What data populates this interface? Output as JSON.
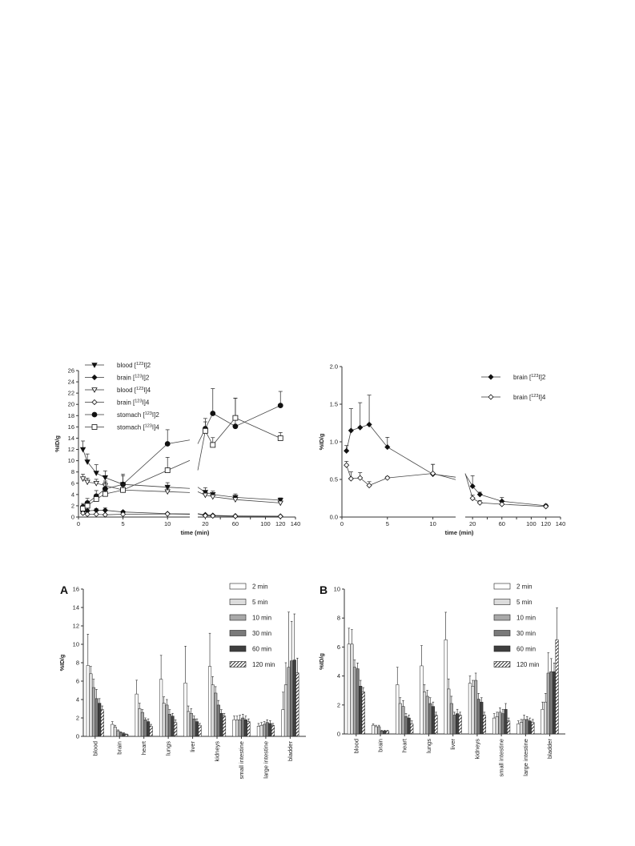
{
  "chart_data": [
    {
      "type": "line",
      "ylabel": "%ID/g",
      "xlabel": "time (min)",
      "xticks_left": [
        "0",
        "5",
        "10"
      ],
      "xticks_right": [
        "20",
        "40",
        "60",
        "80",
        "100",
        "120",
        "140"
      ],
      "xticks_right_labels": [
        "20",
        "",
        "60",
        "",
        "100",
        "120",
        "140"
      ],
      "yticks": [
        "0",
        "2",
        "4",
        "6",
        "8",
        "10",
        "12",
        "14",
        "16",
        "18",
        "20",
        "22",
        "24",
        "26"
      ],
      "ylim": [
        0,
        26
      ],
      "legend_position": "top-left",
      "series": [
        {
          "name": "blood [123I]2",
          "marker": "triangle-down-filled",
          "x": [
            0.5,
            1,
            2,
            3,
            5,
            10,
            20,
            30,
            60,
            120
          ],
          "y": [
            12.0,
            9.8,
            7.8,
            7.0,
            5.8,
            5.3,
            4.4,
            4.0,
            3.5,
            3.0
          ],
          "err": [
            1.5,
            1.4,
            1.5,
            1.2,
            1.8,
            0.8,
            0.8,
            0.6,
            0.6,
            0.4
          ]
        },
        {
          "name": "brain [123I]2",
          "marker": "diamond-filled",
          "x": [
            0.5,
            1,
            2,
            3,
            5,
            10,
            20,
            30,
            60,
            120
          ],
          "y": [
            1.0,
            1.1,
            1.2,
            1.2,
            0.9,
            0.6,
            0.4,
            0.3,
            0.2,
            0.15
          ],
          "err": [
            0.2,
            0.3,
            0.3,
            0.4,
            0.2,
            0.1,
            0.1,
            0.1,
            0.05,
            0.05
          ]
        },
        {
          "name": "blood [123I]4",
          "marker": "triangle-down-open",
          "x": [
            0.5,
            1,
            2,
            3,
            5,
            10,
            20,
            30,
            60,
            120
          ],
          "y": [
            6.8,
            6.2,
            6.0,
            5.6,
            4.8,
            4.5,
            3.9,
            3.6,
            3.1,
            2.5
          ],
          "err": [
            0.8,
            0.7,
            0.7,
            0.8,
            0.7,
            0.6,
            0.5,
            0.5,
            0.4,
            0.3
          ]
        },
        {
          "name": "brain [123I]4",
          "marker": "diamond-open",
          "x": [
            0.5,
            1,
            2,
            3,
            5,
            10,
            20,
            30,
            60,
            120
          ],
          "y": [
            0.7,
            0.5,
            0.5,
            0.4,
            0.5,
            0.55,
            0.25,
            0.2,
            0.15,
            0.12
          ],
          "err": [
            0.1,
            0.1,
            0.1,
            0.1,
            0.05,
            0.1,
            0.05,
            0.05,
            0.03,
            0.03
          ]
        },
        {
          "name": "stomach [123I]2",
          "marker": "circle-filled",
          "x": [
            0.5,
            1,
            2,
            3,
            5,
            10,
            20,
            30,
            60,
            120
          ],
          "y": [
            1.8,
            2.5,
            3.7,
            5.0,
            5.8,
            13.0,
            15.7,
            18.4,
            16.1,
            19.8
          ],
          "err": [
            0.6,
            0.8,
            1.0,
            1.2,
            1.5,
            2.5,
            1.8,
            4.4,
            5.0,
            2.5
          ]
        },
        {
          "name": "stomach [123I]4",
          "marker": "square-open",
          "x": [
            0.5,
            1,
            2,
            3,
            5,
            10,
            20,
            30,
            60,
            120
          ],
          "y": [
            1.5,
            2.0,
            3.2,
            4.1,
            4.8,
            8.3,
            15.3,
            12.8,
            17.6,
            14.0
          ],
          "err": [
            0.5,
            0.6,
            0.8,
            0.7,
            1.0,
            2.3,
            1.6,
            1.3,
            3.5,
            1.0
          ]
        }
      ]
    },
    {
      "type": "line",
      "ylabel": "%ID/g",
      "xlabel": "time (min)",
      "xticks_left": [
        "0",
        "5",
        "10"
      ],
      "xticks_right": [
        "20",
        "40",
        "60",
        "80",
        "100",
        "120",
        "140"
      ],
      "xticks_right_labels": [
        "20",
        "",
        "60",
        "",
        "100",
        "120",
        "140"
      ],
      "yticks": [
        "0.0",
        "0.5",
        "1.0",
        "1.5",
        "2.0"
      ],
      "ylim": [
        0,
        2.0
      ],
      "legend_position": "top-right",
      "series": [
        {
          "name": "brain [123I]2",
          "marker": "diamond-filled",
          "x": [
            0.5,
            1,
            2,
            3,
            5,
            10,
            20,
            30,
            60,
            120
          ],
          "y": [
            0.88,
            1.15,
            1.19,
            1.23,
            0.93,
            0.57,
            0.41,
            0.3,
            0.21,
            0.15
          ],
          "err": [
            0.07,
            0.29,
            0.33,
            0.39,
            0.13,
            0.13,
            0.14,
            0.03,
            0.05,
            0.02
          ]
        },
        {
          "name": "brain [123I]4",
          "marker": "diamond-open",
          "x": [
            0.5,
            1,
            2,
            3,
            5,
            10,
            20,
            30,
            60,
            120
          ],
          "y": [
            0.69,
            0.51,
            0.52,
            0.42,
            0.52,
            0.58,
            0.25,
            0.19,
            0.17,
            0.14
          ],
          "err": [
            0.05,
            0.09,
            0.07,
            0.05,
            0.02,
            0.12,
            0.04,
            0.03,
            0.03,
            0.02
          ]
        }
      ]
    },
    {
      "type": "bar",
      "panel_label": "A",
      "ylabel": "%ID/g",
      "yticks": [
        "0",
        "2",
        "4",
        "6",
        "8",
        "10",
        "12",
        "14",
        "16"
      ],
      "ylim": [
        0,
        16
      ],
      "categories": [
        "blood",
        "brain",
        "heart",
        "lungs",
        "liver",
        "kidneys",
        "small intestine",
        "large intestine",
        "bladder"
      ],
      "legend_position": "top-right",
      "series": [
        {
          "name": "2 min",
          "pattern": "white",
          "values": [
            7.7,
            1.3,
            4.6,
            6.2,
            5.8,
            7.6,
            1.8,
            1.1,
            2.9
          ],
          "err": [
            3.4,
            0.3,
            1.5,
            2.6,
            4.0,
            3.6,
            0.4,
            0.3,
            1.9
          ]
        },
        {
          "name": "5 min",
          "pattern": "light",
          "values": [
            6.8,
            1.0,
            3.0,
            3.6,
            2.7,
            5.6,
            1.8,
            1.2,
            5.6
          ],
          "err": [
            0.8,
            0.2,
            0.6,
            0.7,
            0.6,
            0.9,
            0.4,
            0.3,
            2.4
          ]
        },
        {
          "name": "10 min",
          "pattern": "mid",
          "values": [
            5.3,
            0.6,
            2.6,
            3.4,
            2.5,
            4.7,
            1.8,
            1.3,
            7.5
          ],
          "err": [
            0.9,
            0.1,
            0.3,
            0.6,
            0.5,
            0.7,
            0.5,
            0.3,
            6.0
          ]
        },
        {
          "name": "30 min",
          "pattern": "midark",
          "values": [
            4.1,
            0.4,
            1.8,
            2.4,
            1.9,
            3.4,
            2.0,
            1.5,
            8.2
          ],
          "err": [
            1.0,
            0.1,
            0.2,
            0.5,
            0.3,
            0.5,
            0.4,
            0.3,
            4.3
          ]
        },
        {
          "name": "60 min",
          "pattern": "dark",
          "values": [
            3.6,
            0.3,
            1.6,
            2.2,
            1.6,
            2.5,
            1.8,
            1.4,
            8.3
          ],
          "err": [
            0.5,
            0.1,
            0.3,
            0.3,
            0.3,
            0.4,
            0.4,
            0.3,
            5.0
          ]
        },
        {
          "name": "120 min",
          "pattern": "hatch",
          "values": [
            2.9,
            0.2,
            1.1,
            1.5,
            1.2,
            2.2,
            1.6,
            1.2,
            6.9
          ],
          "err": [
            0.4,
            0.05,
            0.2,
            0.3,
            0.2,
            0.3,
            0.3,
            0.2,
            1.6
          ]
        }
      ]
    },
    {
      "type": "bar",
      "panel_label": "B",
      "ylabel": "%ID/g",
      "yticks": [
        "0",
        "2",
        "4",
        "6",
        "8",
        "10"
      ],
      "ylim": [
        0,
        10
      ],
      "categories": [
        "blood",
        "brain",
        "heart",
        "lungs",
        "liver",
        "kidneys",
        "small intestine",
        "large intestine",
        "bladder"
      ],
      "legend_position": "top-right",
      "series": [
        {
          "name": "2 min",
          "pattern": "white",
          "values": [
            6.2,
            0.6,
            3.4,
            4.7,
            6.5,
            3.5,
            1.1,
            0.7,
            1.7
          ],
          "err": [
            1.1,
            0.1,
            1.2,
            1.4,
            1.9,
            0.5,
            0.3,
            0.2,
            0.5
          ]
        },
        {
          "name": "5 min",
          "pattern": "light",
          "values": [
            6.2,
            0.5,
            2.1,
            2.9,
            3.1,
            3.3,
            1.2,
            0.8,
            2.2
          ],
          "err": [
            1.0,
            0.1,
            0.4,
            0.5,
            0.7,
            0.4,
            0.3,
            0.2,
            0.6
          ]
        },
        {
          "name": "10 min",
          "pattern": "mid",
          "values": [
            4.6,
            0.5,
            1.9,
            2.6,
            2.1,
            3.7,
            1.5,
            1.0,
            4.2
          ],
          "err": [
            0.5,
            0.1,
            0.4,
            0.4,
            0.5,
            0.5,
            0.3,
            0.3,
            1.4
          ]
        },
        {
          "name": "30 min",
          "pattern": "midark",
          "values": [
            4.5,
            0.2,
            1.2,
            2.1,
            1.3,
            2.4,
            1.4,
            1.0,
            4.3
          ],
          "err": [
            0.4,
            0.05,
            0.2,
            0.4,
            0.2,
            0.4,
            0.3,
            0.2,
            0.9
          ]
        },
        {
          "name": "60 min",
          "pattern": "dark",
          "values": [
            3.3,
            0.2,
            1.1,
            1.9,
            1.4,
            2.2,
            1.7,
            0.9,
            4.3
          ],
          "err": [
            0.4,
            0.05,
            0.2,
            0.3,
            0.3,
            0.3,
            0.4,
            0.2,
            0.6
          ]
        },
        {
          "name": "120 min",
          "pattern": "hatch",
          "values": [
            2.9,
            0.2,
            0.7,
            1.3,
            1.3,
            1.3,
            0.9,
            0.8,
            6.5
          ],
          "err": [
            0.3,
            0.05,
            0.2,
            0.2,
            0.2,
            0.2,
            0.2,
            0.2,
            2.2
          ]
        }
      ]
    }
  ]
}
